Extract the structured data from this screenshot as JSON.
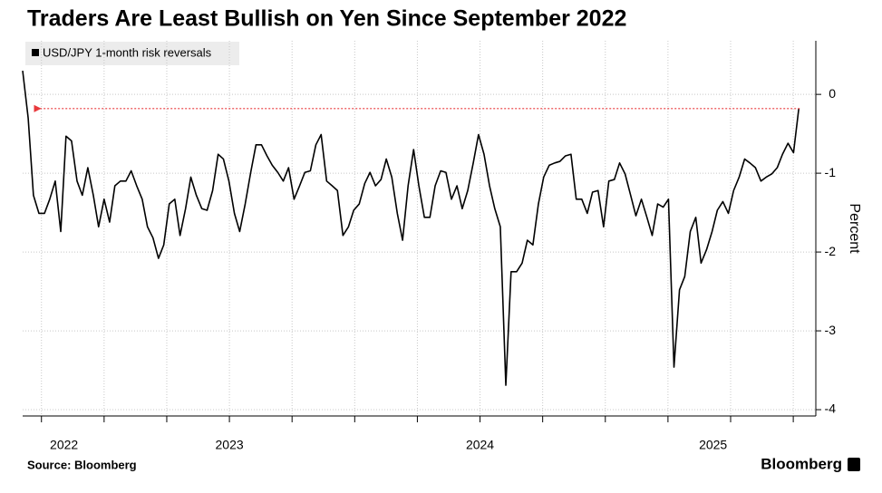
{
  "chart_data": {
    "type": "line",
    "title": "Traders Are Least Bullish on Yen Since September 2022",
    "ylabel": "Percent",
    "source": "Source: Bloomberg",
    "brand": "Bloomberg",
    "legend": "top-left",
    "grid": true,
    "reference_color": "#e8393c",
    "x": [
      2022.675,
      2022.697,
      2022.718,
      2022.74,
      2022.762,
      2022.783,
      2022.805,
      2022.827,
      2022.848,
      2022.87,
      2022.892,
      2022.913,
      2022.935,
      2022.957,
      2022.978,
      2023.0,
      2023.022,
      2023.043,
      2023.065,
      2023.087,
      2023.108,
      2023.13,
      2023.152,
      2023.173,
      2023.195,
      2023.217,
      2023.238,
      2023.26,
      2023.282,
      2023.303,
      2023.325,
      2023.346,
      2023.368,
      2023.39,
      2023.411,
      2023.433,
      2023.455,
      2023.476,
      2023.498,
      2023.52,
      2023.541,
      2023.563,
      2023.585,
      2023.606,
      2023.628,
      2023.65,
      2023.671,
      2023.693,
      2023.715,
      2023.736,
      2023.758,
      2023.78,
      2023.801,
      2023.823,
      2023.845,
      2023.866,
      2023.888,
      2023.91,
      2023.931,
      2023.953,
      2023.975,
      2023.996,
      2024.018,
      2024.04,
      2024.061,
      2024.083,
      2024.105,
      2024.126,
      2024.148,
      2024.17,
      2024.191,
      2024.213,
      2024.235,
      2024.256,
      2024.278,
      2024.3,
      2024.321,
      2024.343,
      2024.364,
      2024.386,
      2024.408,
      2024.429,
      2024.451,
      2024.473,
      2024.494,
      2024.516,
      2024.538,
      2024.559,
      2024.581,
      2024.603,
      2024.624,
      2024.646,
      2024.668,
      2024.689,
      2024.711,
      2024.733,
      2024.754,
      2024.776,
      2024.798,
      2024.819,
      2024.841,
      2024.863,
      2024.884,
      2024.906,
      2024.928,
      2024.949,
      2024.971,
      2024.993,
      2025.014,
      2025.036,
      2025.057,
      2025.079,
      2025.101,
      2025.122,
      2025.144,
      2025.166,
      2025.187,
      2025.209,
      2025.231,
      2025.252,
      2025.274,
      2025.296,
      2025.317,
      2025.339,
      2025.361,
      2025.382,
      2025.404,
      2025.426,
      2025.447,
      2025.469,
      2025.491,
      2025.512,
      2025.534,
      2025.556,
      2025.577,
      2025.599,
      2025.621,
      2025.642,
      2025.664,
      2025.686,
      2025.707,
      2025.729,
      2025.751,
      2025.772
    ],
    "series": [
      {
        "name": "USD/JPY 1-month risk reversals",
        "color": "#000000",
        "values": [
          0.3,
          -0.3,
          -1.28,
          -1.51,
          -1.51,
          -1.33,
          -1.1,
          -1.74,
          -0.53,
          -0.59,
          -1.1,
          -1.28,
          -0.93,
          -1.28,
          -1.68,
          -1.33,
          -1.62,
          -1.16,
          -1.1,
          -1.1,
          -0.97,
          -1.16,
          -1.33,
          -1.68,
          -1.82,
          -2.08,
          -1.91,
          -1.39,
          -1.33,
          -1.79,
          -1.45,
          -1.05,
          -1.28,
          -1.45,
          -1.47,
          -1.22,
          -0.76,
          -0.82,
          -1.1,
          -1.51,
          -1.74,
          -1.39,
          -0.99,
          -0.64,
          -0.64,
          -0.78,
          -0.9,
          -0.99,
          -1.1,
          -0.93,
          -1.33,
          -1.16,
          -0.99,
          -0.97,
          -0.64,
          -0.51,
          -1.1,
          -1.16,
          -1.22,
          -1.79,
          -1.68,
          -1.47,
          -1.39,
          -1.13,
          -0.99,
          -1.16,
          -1.08,
          -0.82,
          -1.05,
          -1.51,
          -1.85,
          -1.16,
          -0.7,
          -1.16,
          -1.56,
          -1.56,
          -1.16,
          -0.97,
          -0.99,
          -1.33,
          -1.16,
          -1.45,
          -1.22,
          -0.87,
          -0.51,
          -0.76,
          -1.16,
          -1.45,
          -1.68,
          -3.69,
          -2.25,
          -2.25,
          -2.14,
          -1.85,
          -1.91,
          -1.39,
          -1.05,
          -0.9,
          -0.87,
          -0.85,
          -0.78,
          -0.76,
          -1.33,
          -1.33,
          -1.51,
          -1.24,
          -1.22,
          -1.68,
          -1.1,
          -1.08,
          -0.87,
          -1.01,
          -1.28,
          -1.54,
          -1.33,
          -1.56,
          -1.79,
          -1.39,
          -1.43,
          -1.33,
          -3.46,
          -2.48,
          -2.31,
          -1.74,
          -1.56,
          -2.14,
          -1.97,
          -1.74,
          -1.47,
          -1.36,
          -1.51,
          -1.22,
          -1.05,
          -0.82,
          -0.87,
          -0.93,
          -1.1,
          -1.05,
          -1.01,
          -0.93,
          -0.76,
          -0.62,
          -0.74,
          -0.18
        ]
      }
    ],
    "xlim": [
      2022.675,
      2025.84
    ],
    "xticks": [
      {
        "value": 2022.84,
        "label": "2022"
      },
      {
        "value": 2023.5,
        "label": "2023"
      },
      {
        "value": 2024.5,
        "label": "2024"
      },
      {
        "value": 2025.43,
        "label": "2025"
      }
    ],
    "xgrid": [
      2022.75,
      2023,
      2023.25,
      2023.5,
      2023.75,
      2024,
      2024.25,
      2024.5,
      2024.75,
      2025,
      2025.25,
      2025.5,
      2025.75
    ],
    "ylim": [
      -4.08,
      0.68
    ],
    "yticks": [
      0,
      -1,
      -2,
      -3,
      -4
    ]
  }
}
